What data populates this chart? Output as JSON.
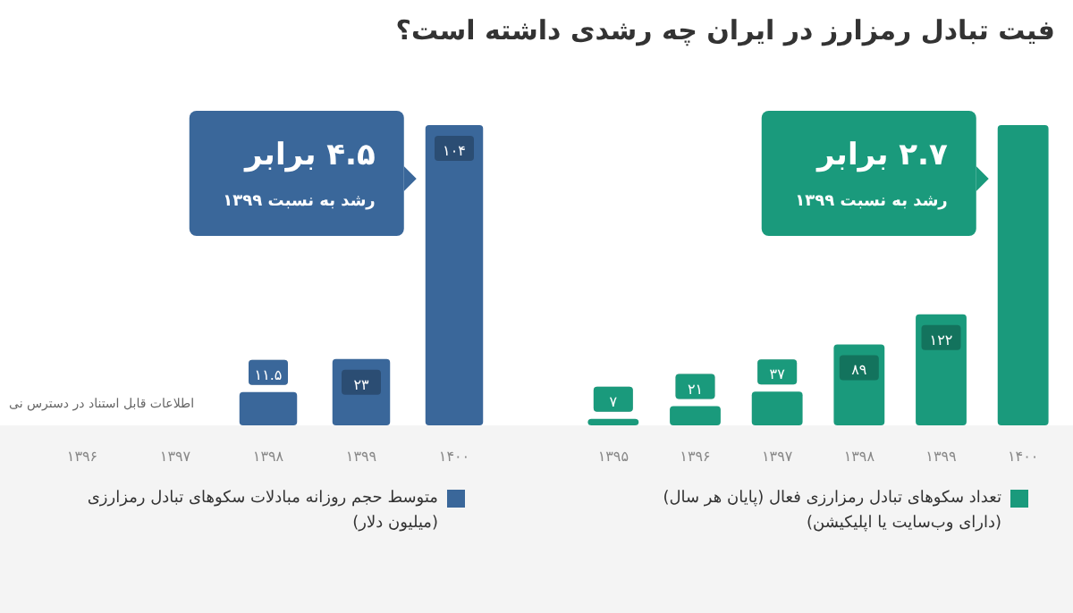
{
  "chart_data": [
    {
      "type": "bar",
      "categories": [
        "۱۳۹۶",
        "۱۳۹۷",
        "۱۳۹۸",
        "۱۳۹۹",
        "۱۴۰۰"
      ],
      "series": [
        {
          "name": "متوسط حجم روزانه مبادلات سکوهای تبادل رمزارزی (میلیون دلار)",
          "color": "#3a679a",
          "values": [
            null,
            null,
            11.5,
            23,
            104
          ],
          "value_labels": [
            null,
            null,
            "۱۱.۵",
            "۲۳",
            "۱۰۴"
          ]
        }
      ],
      "annotations": [
        "۴.۵ برابر",
        "رشد به نسبت ۱۳۹۹",
        "اطلاعات قابل استناد در دسترس نی"
      ],
      "legend": "bottom",
      "grid": false
    },
    {
      "type": "bar",
      "title": "فیت تبادل رمزارز در ایران چه رشدی داشته است؟",
      "categories": [
        "۱۳۹۵",
        "۱۳۹۶",
        "۱۳۹۷",
        "۱۳۹۸",
        "۱۳۹۹",
        "۱۴۰۰"
      ],
      "series": [
        {
          "name": "تعداد سکوهای تبادل رمزارزی فعال (پایان هر سال) (دارای وب‌سایت یا اپلیکیشن)",
          "color": "#1a9a7c",
          "values": [
            7,
            21,
            37,
            89,
            122,
            330
          ],
          "value_labels": [
            "۷",
            "۲۱",
            "۳۷",
            "۸۹",
            "۱۲۲",
            null
          ]
        }
      ],
      "annotations": [
        "۲.۷ برابر",
        "رشد به نسبت ۱۳۹۹"
      ],
      "legend": "bottom",
      "grid": false
    }
  ]
}
